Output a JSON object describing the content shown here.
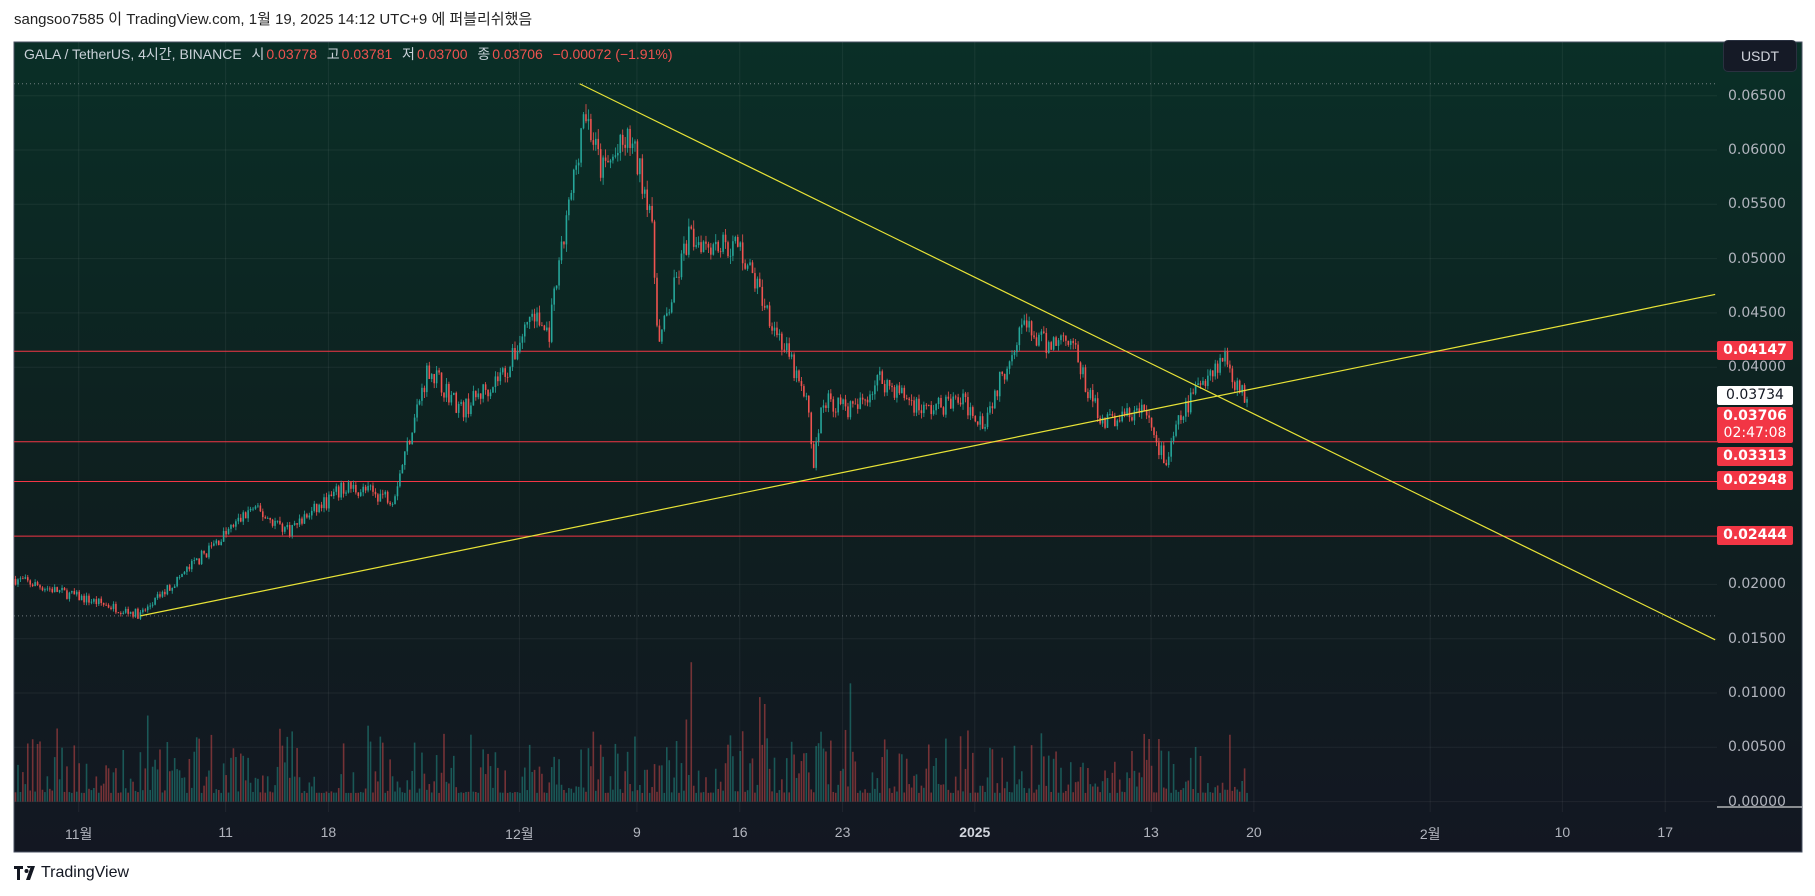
{
  "publish_line": "sangsoo7585 이 TradingView.com, 1월 19, 2025 14:12 UTC+9 에 퍼블리쉬했음",
  "legend": {
    "symbol": "GALA / TetherUS, 4시간, BINANCE",
    "open_label": "시",
    "open": "0.03778",
    "high_label": "고",
    "high": "0.03781",
    "low_label": "저",
    "low": "0.03700",
    "close_label": "종",
    "close": "0.03706",
    "change": "−0.00072 (−1.91%)"
  },
  "currency_button": "USDT",
  "footer_brand": "TradingView",
  "colors": {
    "up": "#26a69a",
    "down": "#ef5350",
    "trendline": "#e8e337",
    "level": "#f23645"
  },
  "chart_data": {
    "type": "candlestick",
    "title": "GALA / TetherUS, 4시간, BINANCE",
    "y_ticks": [
      "0.06500",
      "0.06000",
      "0.05500",
      "0.05000",
      "0.04500",
      "0.04000",
      "0.02000",
      "0.01500",
      "0.01000",
      "0.00500",
      "0.00000"
    ],
    "y_tick_values": [
      0.065,
      0.06,
      0.055,
      0.05,
      0.045,
      0.04,
      0.02,
      0.015,
      0.01,
      0.005,
      0
    ],
    "ylim": [
      0,
      0.065
    ],
    "x_ticks": [
      {
        "label": "11월",
        "day": 0,
        "bold": false
      },
      {
        "label": "11",
        "day": 10,
        "bold": false
      },
      {
        "label": "18",
        "day": 17,
        "bold": false
      },
      {
        "label": "12월",
        "day": 30,
        "bold": false
      },
      {
        "label": "9",
        "day": 38,
        "bold": false
      },
      {
        "label": "16",
        "day": 45,
        "bold": false
      },
      {
        "label": "23",
        "day": 52,
        "bold": false
      },
      {
        "label": "2025",
        "day": 61,
        "bold": true
      },
      {
        "label": "13",
        "day": 73,
        "bold": false
      },
      {
        "label": "20",
        "day": 80,
        "bold": false
      },
      {
        "label": "2월",
        "day": 92,
        "bold": false
      },
      {
        "label": "10",
        "day": 101,
        "bold": false
      },
      {
        "label": "17",
        "day": 108,
        "bold": false
      }
    ],
    "price_path_day_close": [
      [
        -4.3,
        0.0205
      ],
      [
        4.2,
        0.0172
      ],
      [
        11.8,
        0.027
      ],
      [
        14.3,
        0.025
      ],
      [
        18.2,
        0.029
      ],
      [
        21.4,
        0.028
      ],
      [
        23.8,
        0.04
      ],
      [
        26.1,
        0.036
      ],
      [
        29.3,
        0.04
      ],
      [
        30.8,
        0.045
      ],
      [
        32,
        0.043
      ],
      [
        34,
        0.06
      ],
      [
        34.4,
        0.064
      ],
      [
        35.6,
        0.058
      ],
      [
        37.5,
        0.061
      ],
      [
        38.9,
        0.055
      ],
      [
        39.5,
        0.042
      ],
      [
        41.5,
        0.052
      ],
      [
        45,
        0.051
      ],
      [
        47,
        0.045
      ],
      [
        48.6,
        0.04
      ],
      [
        49.7,
        0.036
      ],
      [
        50,
        0.031
      ],
      [
        50.7,
        0.037
      ],
      [
        52.9,
        0.036
      ],
      [
        54.5,
        0.039
      ],
      [
        57.6,
        0.036
      ],
      [
        60,
        0.037
      ],
      [
        61.6,
        0.035
      ],
      [
        63.1,
        0.04
      ],
      [
        64.1,
        0.044
      ],
      [
        65.8,
        0.042
      ],
      [
        67.5,
        0.043
      ],
      [
        68.6,
        0.038
      ],
      [
        69.8,
        0.035
      ],
      [
        72.6,
        0.036
      ],
      [
        74,
        0.031
      ],
      [
        74.9,
        0.035
      ],
      [
        76.5,
        0.039
      ],
      [
        78.1,
        0.041
      ],
      [
        78.9,
        0.038
      ],
      [
        79.6,
        0.03706
      ]
    ],
    "trendlines": [
      {
        "name": "descending",
        "from": [
          34.1,
          0.0661
        ],
        "to": [
          111.4,
          0.0149
        ]
      },
      {
        "name": "ascending",
        "from": [
          4.2,
          0.0171
        ],
        "to": [
          111.4,
          0.0467
        ]
      }
    ],
    "dotted_levels": [
      0.0661,
      0.0171
    ],
    "horizontal_levels": [
      {
        "value": 0.04147,
        "label": "0.04147"
      },
      {
        "value": 0.03313,
        "label": "0.03313"
      },
      {
        "value": 0.02948,
        "label": "0.02948"
      },
      {
        "value": 0.02444,
        "label": "0.02444"
      }
    ],
    "price_tags": {
      "last_visible": "0.03734",
      "current": "0.03706",
      "countdown": "02:47:08"
    }
  }
}
